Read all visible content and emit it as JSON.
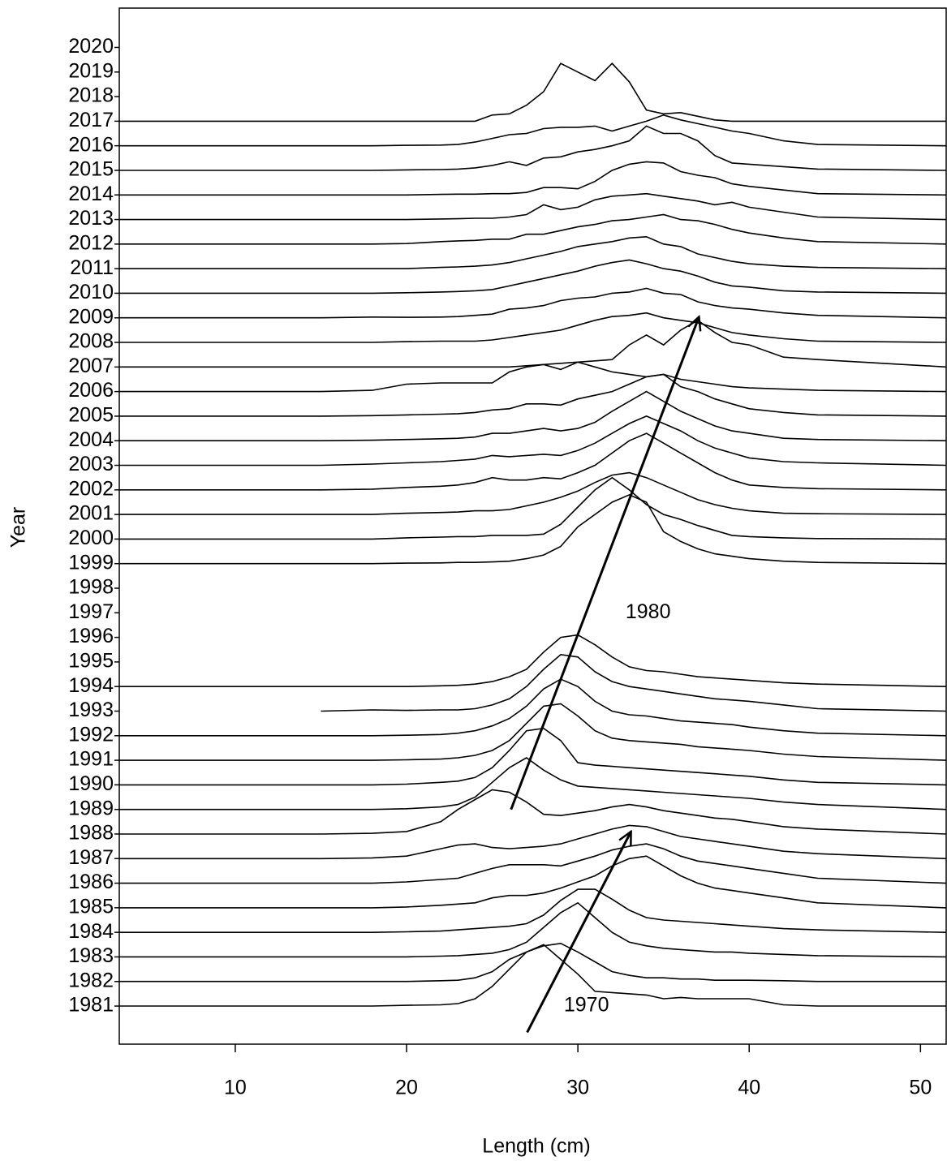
{
  "chart_data": {
    "type": "ridgeline",
    "xlabel": "Length (cm)",
    "ylabel": "Year",
    "color": "#000000",
    "xlim": [
      3.23,
      51.5
    ],
    "ylim": [
      1979.45,
      2021.6
    ],
    "xticks": [
      10,
      20,
      30,
      40,
      50
    ],
    "yticks": [
      1981,
      1982,
      1983,
      1984,
      1985,
      1986,
      1987,
      1988,
      1989,
      1990,
      1991,
      1992,
      1993,
      1994,
      1995,
      1996,
      1997,
      1998,
      1999,
      2000,
      2001,
      2002,
      2003,
      2004,
      2005,
      2006,
      2007,
      2008,
      2009,
      2010,
      2011,
      2012,
      2013,
      2014,
      2015,
      2016,
      2017,
      2018,
      2019,
      2020
    ],
    "x": [
      3.23,
      15,
      18,
      20,
      22,
      23,
      24,
      25,
      26,
      27,
      28,
      29,
      30,
      31,
      32,
      33,
      34,
      35,
      36,
      37,
      38,
      39,
      40,
      42,
      44,
      51.5
    ],
    "series": [
      {
        "baseline": 1981,
        "values": [
          0,
          0,
          0,
          0.03,
          0.05,
          0.1,
          0.3,
          0.8,
          1.5,
          2.2,
          2.5,
          1.9,
          1.3,
          0.6,
          0.55,
          0.5,
          0.45,
          0.3,
          0.35,
          0.3,
          0.3,
          0.3,
          0.3,
          0.05,
          0,
          0
        ]
      },
      {
        "baseline": 1982,
        "values": [
          0,
          0,
          0,
          0,
          0.03,
          0.05,
          0.15,
          0.4,
          0.9,
          1.2,
          1.45,
          1.55,
          1.2,
          0.8,
          0.4,
          0.25,
          0.15,
          0.15,
          0.1,
          0.1,
          0.05,
          0.05,
          0.05,
          0.03,
          0,
          0
        ]
      },
      {
        "baseline": 1983,
        "values": [
          0,
          0,
          0,
          0,
          0.03,
          0.05,
          0.1,
          0.15,
          0.3,
          0.6,
          1.2,
          1.8,
          2.2,
          1.6,
          1.0,
          0.6,
          0.45,
          0.35,
          0.3,
          0.25,
          0.2,
          0.2,
          0.15,
          0.1,
          0.05,
          0
        ]
      },
      {
        "baseline": 1984,
        "values": [
          0,
          0,
          0,
          0.02,
          0.05,
          0.1,
          0.15,
          0.2,
          0.25,
          0.35,
          0.7,
          1.3,
          1.75,
          1.75,
          1.35,
          0.9,
          0.6,
          0.5,
          0.45,
          0.4,
          0.35,
          0.3,
          0.25,
          0.15,
          0.1,
          0
        ]
      },
      {
        "baseline": 1985,
        "values": [
          0,
          0,
          0,
          0.03,
          0.1,
          0.15,
          0.2,
          0.4,
          0.5,
          0.5,
          0.6,
          0.8,
          1.05,
          1.3,
          1.7,
          2.0,
          2.1,
          1.7,
          1.3,
          1.0,
          0.8,
          0.7,
          0.6,
          0.4,
          0.2,
          0
        ]
      },
      {
        "baseline": 1986,
        "values": [
          0,
          0,
          0,
          0.05,
          0.15,
          0.2,
          0.4,
          0.6,
          0.75,
          0.75,
          0.75,
          0.7,
          0.9,
          1.1,
          1.35,
          1.5,
          1.6,
          1.4,
          1.1,
          0.9,
          0.8,
          0.7,
          0.6,
          0.4,
          0.2,
          0
        ]
      },
      {
        "baseline": 1987,
        "values": [
          0,
          0,
          0.03,
          0.1,
          0.4,
          0.55,
          0.6,
          0.45,
          0.4,
          0.45,
          0.5,
          0.6,
          0.8,
          1.0,
          1.2,
          1.35,
          1.3,
          1.1,
          0.9,
          0.8,
          0.7,
          0.6,
          0.5,
          0.3,
          0.2,
          0
        ]
      },
      {
        "baseline": 1988,
        "values": [
          0,
          0,
          0.03,
          0.1,
          0.5,
          1.0,
          1.4,
          1.8,
          1.7,
          1.3,
          0.8,
          0.75,
          0.85,
          0.95,
          1.1,
          1.2,
          1.1,
          0.95,
          0.85,
          0.75,
          0.65,
          0.6,
          0.5,
          0.3,
          0.2,
          0
        ]
      },
      {
        "baseline": 1989,
        "values": [
          0,
          0,
          0,
          0.03,
          0.1,
          0.2,
          0.5,
          1.1,
          1.7,
          2.1,
          1.6,
          1.2,
          0.95,
          0.9,
          0.85,
          0.8,
          0.75,
          0.7,
          0.65,
          0.6,
          0.55,
          0.5,
          0.45,
          0.3,
          0.2,
          0
        ]
      },
      {
        "baseline": 1990,
        "values": [
          0,
          0,
          0,
          0.03,
          0.1,
          0.15,
          0.3,
          0.7,
          1.4,
          2.2,
          2.3,
          1.8,
          0.9,
          0.8,
          0.75,
          0.7,
          0.65,
          0.6,
          0.55,
          0.5,
          0.45,
          0.4,
          0.35,
          0.2,
          0.1,
          0
        ]
      },
      {
        "baseline": 1991,
        "values": [
          0,
          0,
          0,
          0.02,
          0.05,
          0.1,
          0.2,
          0.4,
          0.8,
          1.5,
          2.2,
          2.3,
          1.8,
          1.2,
          0.9,
          0.8,
          0.75,
          0.7,
          0.65,
          0.55,
          0.5,
          0.45,
          0.4,
          0.25,
          0.15,
          0
        ]
      },
      {
        "baseline": 1992,
        "values": [
          0,
          0,
          0,
          0.02,
          0.05,
          0.1,
          0.2,
          0.4,
          0.7,
          1.2,
          1.9,
          2.3,
          2.0,
          1.4,
          1.0,
          0.85,
          0.8,
          0.7,
          0.6,
          0.55,
          0.5,
          0.45,
          0.35,
          0.2,
          0.1,
          0
        ]
      },
      {
        "baseline": 1993,
        "values": [
          null,
          0,
          0.05,
          0.03,
          0.05,
          0.05,
          0.1,
          0.25,
          0.5,
          1.0,
          1.7,
          2.3,
          2.2,
          1.6,
          1.2,
          1.0,
          0.9,
          0.8,
          0.7,
          0.6,
          0.5,
          0.45,
          0.4,
          0.25,
          0.1,
          0
        ]
      },
      {
        "baseline": 1994,
        "values": [
          0,
          0,
          0,
          0,
          0.03,
          0.05,
          0.1,
          0.2,
          0.4,
          0.7,
          1.4,
          2.0,
          2.1,
          1.7,
          1.2,
          0.8,
          0.65,
          0.6,
          0.5,
          0.4,
          0.35,
          0.3,
          0.25,
          0.15,
          0.1,
          0
        ]
      },
      {
        "baseline": 1999,
        "values": [
          0,
          0,
          0,
          0.02,
          0.03,
          0.05,
          0.05,
          0.07,
          0.1,
          0.2,
          0.35,
          0.7,
          1.5,
          2.0,
          2.5,
          2.8,
          2.5,
          1.3,
          0.9,
          0.6,
          0.4,
          0.3,
          0.2,
          0.1,
          0.05,
          0
        ]
      },
      {
        "baseline": 2000,
        "values": [
          0,
          0,
          0,
          0.05,
          0.08,
          0.1,
          0.1,
          0.15,
          0.15,
          0.15,
          0.2,
          0.6,
          1.3,
          2.0,
          2.5,
          2.0,
          1.4,
          1.0,
          0.8,
          0.55,
          0.35,
          0.15,
          0.1,
          0.05,
          0.02,
          0
        ]
      },
      {
        "baseline": 2001,
        "values": [
          0,
          0,
          0,
          0.05,
          0.08,
          0.1,
          0.15,
          0.15,
          0.2,
          0.35,
          0.5,
          0.7,
          0.95,
          1.3,
          1.6,
          1.7,
          1.5,
          1.2,
          0.9,
          0.6,
          0.4,
          0.25,
          0.15,
          0.05,
          0.03,
          0
        ]
      },
      {
        "baseline": 2002,
        "values": [
          0,
          0,
          0.03,
          0.1,
          0.15,
          0.2,
          0.3,
          0.5,
          0.4,
          0.4,
          0.5,
          0.45,
          0.7,
          1.0,
          1.5,
          2.0,
          2.3,
          1.9,
          1.5,
          1.1,
          0.7,
          0.4,
          0.2,
          0.1,
          0.05,
          0
        ]
      },
      {
        "baseline": 2003,
        "values": [
          0,
          0,
          0.05,
          0.1,
          0.15,
          0.2,
          0.25,
          0.4,
          0.35,
          0.4,
          0.45,
          0.4,
          0.6,
          0.9,
          1.3,
          1.7,
          2.0,
          1.7,
          1.4,
          1.0,
          0.7,
          0.5,
          0.3,
          0.15,
          0.1,
          0
        ]
      },
      {
        "baseline": 2004,
        "values": [
          0,
          0,
          0.02,
          0.05,
          0.08,
          0.1,
          0.15,
          0.3,
          0.3,
          0.4,
          0.5,
          0.4,
          0.5,
          0.75,
          1.2,
          1.6,
          2.0,
          1.6,
          1.2,
          0.9,
          0.6,
          0.4,
          0.3,
          0.1,
          0.05,
          0
        ]
      },
      {
        "baseline": 2005,
        "values": [
          0,
          0,
          0.02,
          0.05,
          0.08,
          0.1,
          0.15,
          0.25,
          0.3,
          0.5,
          0.5,
          0.45,
          0.7,
          0.85,
          1.0,
          1.3,
          1.6,
          1.7,
          1.2,
          1.0,
          0.7,
          0.5,
          0.3,
          0.15,
          0.05,
          0
        ]
      },
      {
        "baseline": 2006,
        "values": [
          0,
          0,
          0.05,
          0.3,
          0.35,
          0.35,
          0.35,
          0.35,
          0.8,
          1.0,
          1.1,
          0.9,
          1.2,
          1.0,
          0.8,
          0.7,
          0.6,
          0.7,
          0.5,
          0.4,
          0.3,
          0.2,
          0.15,
          0.1,
          0.05,
          0
        ]
      },
      {
        "baseline": 2007,
        "values": [
          0,
          0,
          0,
          0,
          0,
          0,
          0,
          0,
          0,
          0.05,
          0.1,
          0.15,
          0.2,
          0.25,
          0.3,
          0.9,
          1.3,
          0.9,
          1.5,
          1.9,
          1.4,
          1.0,
          0.9,
          0.4,
          0.3,
          0
        ]
      },
      {
        "baseline": 2008,
        "values": [
          0,
          0,
          0,
          0.03,
          0.05,
          0.05,
          0.05,
          0.1,
          0.2,
          0.3,
          0.4,
          0.5,
          0.7,
          0.9,
          1.05,
          1.1,
          1.2,
          1.0,
          0.9,
          0.8,
          0.6,
          0.4,
          0.3,
          0.15,
          0.05,
          0
        ]
      },
      {
        "baseline": 2009,
        "values": [
          0,
          0,
          0.03,
          0.02,
          0.03,
          0.05,
          0.1,
          0.15,
          0.35,
          0.4,
          0.5,
          0.7,
          0.8,
          0.85,
          1.0,
          1.05,
          1.2,
          1.0,
          0.95,
          0.65,
          0.5,
          0.4,
          0.35,
          0.2,
          0.1,
          0
        ]
      },
      {
        "baseline": 2010,
        "values": [
          0,
          0,
          0,
          0.02,
          0.05,
          0.07,
          0.1,
          0.15,
          0.3,
          0.45,
          0.6,
          0.75,
          0.9,
          1.1,
          1.25,
          1.35,
          1.2,
          1.0,
          0.9,
          0.7,
          0.45,
          0.3,
          0.25,
          0.1,
          0.05,
          0
        ]
      },
      {
        "baseline": 2011,
        "values": [
          0,
          0,
          0,
          0,
          0.05,
          0.07,
          0.1,
          0.15,
          0.25,
          0.4,
          0.55,
          0.7,
          0.9,
          1.0,
          1.1,
          1.25,
          1.3,
          1.0,
          0.9,
          0.6,
          0.45,
          0.3,
          0.2,
          0.1,
          0.05,
          0
        ]
      },
      {
        "baseline": 2012,
        "values": [
          0,
          0,
          0,
          0.02,
          0.1,
          0.13,
          0.15,
          0.2,
          0.2,
          0.4,
          0.4,
          0.55,
          0.7,
          0.8,
          0.95,
          1.0,
          1.1,
          1.2,
          1.0,
          0.95,
          0.8,
          0.6,
          0.45,
          0.25,
          0.1,
          0
        ]
      },
      {
        "baseline": 2013,
        "values": [
          0,
          0,
          0,
          0,
          0.02,
          0.03,
          0.05,
          0.05,
          0.1,
          0.2,
          0.6,
          0.4,
          0.5,
          0.8,
          0.95,
          1.0,
          1.05,
          0.95,
          0.85,
          0.75,
          0.6,
          0.7,
          0.5,
          0.3,
          0.1,
          0
        ]
      },
      {
        "baseline": 2014,
        "values": [
          0,
          0,
          0,
          0,
          0.02,
          0.03,
          0.03,
          0.05,
          0.05,
          0.1,
          0.3,
          0.3,
          0.25,
          0.55,
          1.0,
          1.25,
          1.35,
          1.3,
          0.95,
          0.8,
          0.7,
          0.45,
          0.35,
          0.2,
          0.05,
          0
        ]
      },
      {
        "baseline": 2015,
        "values": [
          0,
          0,
          0,
          0.02,
          0.03,
          0.05,
          0.1,
          0.2,
          0.35,
          0.2,
          0.5,
          0.55,
          0.75,
          0.85,
          1.0,
          1.2,
          1.8,
          1.5,
          1.5,
          1.2,
          0.6,
          0.3,
          0.25,
          0.15,
          0.05,
          0
        ]
      },
      {
        "baseline": 2016,
        "values": [
          0,
          0,
          0,
          0.02,
          0.03,
          0.05,
          0.15,
          0.3,
          0.45,
          0.5,
          0.7,
          0.75,
          0.75,
          0.8,
          0.6,
          0.8,
          1.0,
          1.25,
          1.05,
          0.9,
          0.75,
          0.6,
          0.5,
          0.2,
          0.05,
          0
        ]
      },
      {
        "baseline": 2017,
        "values": [
          0,
          0,
          0,
          0,
          0,
          0,
          0,
          0.25,
          0.3,
          0.65,
          1.2,
          2.35,
          2.0,
          1.65,
          2.35,
          1.6,
          0.45,
          0.3,
          0.35,
          0.2,
          0.05,
          0,
          0,
          0,
          0,
          0
        ]
      }
    ],
    "annotations": [
      {
        "text": "1980",
        "x": 34.1,
        "y": 1997
      },
      {
        "text": "1970",
        "x": 30.5,
        "y": 1981
      }
    ],
    "arrows": [
      {
        "x": [
          27.04,
          33.1
        ],
        "y": [
          1979.93,
          1988.1
        ]
      },
      {
        "x": [
          26.1,
          37.07
        ],
        "y": [
          1989.0,
          2009.04
        ]
      }
    ]
  }
}
